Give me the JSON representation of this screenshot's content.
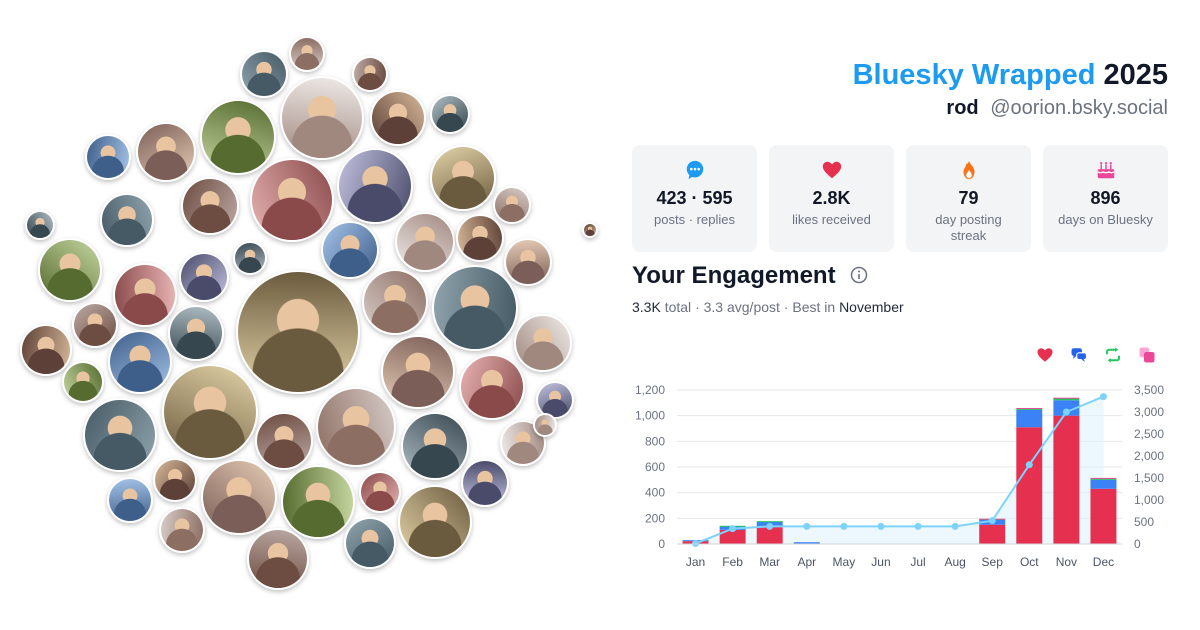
{
  "header": {
    "brand": "Bluesky Wrapped",
    "year": "2025",
    "username": "rod",
    "handle": "@oorion.bsky.social"
  },
  "stats": [
    {
      "icon": "chat-bubble-icon",
      "color": "#1d9bf0",
      "value": "423 · 595",
      "label": "posts · replies"
    },
    {
      "icon": "heart-icon",
      "color": "#e5304f",
      "value": "2.8K",
      "label": "likes received"
    },
    {
      "icon": "fire-icon",
      "color": "#f97316",
      "value": "79",
      "label": "day posting streak"
    },
    {
      "icon": "cake-icon",
      "color": "#ec4899",
      "value": "896",
      "label": "days on Bluesky"
    }
  ],
  "engagement": {
    "title": "Your Engagement",
    "total": "3.3K",
    "total_label": "total",
    "avg": "3.3 avg/post",
    "best_prefix": "Best in",
    "best_month": "November"
  },
  "legend": [
    {
      "name": "likes",
      "icon": "heart-icon",
      "color": "#e5304f"
    },
    {
      "name": "replies",
      "icon": "reply-bubbles-icon",
      "color": "#2563eb"
    },
    {
      "name": "reposts",
      "icon": "repost-icon",
      "color": "#22c55e"
    },
    {
      "name": "quotes",
      "icon": "quote-icon",
      "color": "#ec4899"
    }
  ],
  "chart_data": {
    "type": "bar",
    "categories": [
      "Jan",
      "Feb",
      "Mar",
      "Apr",
      "May",
      "Jun",
      "Jul",
      "Aug",
      "Sep",
      "Oct",
      "Nov",
      "Dec"
    ],
    "series": [
      {
        "name": "likes",
        "color": "#e5304f",
        "values": [
          22,
          110,
          140,
          4,
          0,
          0,
          0,
          0,
          150,
          910,
          1000,
          430
        ]
      },
      {
        "name": "replies",
        "color": "#3b82f6",
        "values": [
          8,
          30,
          35,
          10,
          0,
          0,
          0,
          0,
          40,
          135,
          120,
          70
        ]
      },
      {
        "name": "reposts",
        "color": "#22c55e",
        "values": [
          0,
          2,
          3,
          0,
          0,
          0,
          0,
          0,
          5,
          10,
          15,
          10
        ]
      },
      {
        "name": "quotes",
        "color": "#ec4899",
        "values": [
          0,
          0,
          0,
          0,
          0,
          0,
          0,
          0,
          2,
          5,
          5,
          5
        ]
      }
    ],
    "cumulative": {
      "color": "#7dd3fc",
      "values": [
        10,
        350,
        400,
        400,
        400,
        400,
        400,
        400,
        530,
        1800,
        3000,
        3350
      ]
    },
    "ylim_left": [
      0,
      1200
    ],
    "yticks_left": [
      "0",
      "200",
      "400",
      "600",
      "800",
      "1,000",
      "1,200"
    ],
    "ylim_right": [
      0,
      3500
    ],
    "yticks_right": [
      "0",
      "500",
      "1,000",
      "1,500",
      "2,000",
      "2,500",
      "3,000",
      "3,500"
    ],
    "grid": true,
    "legend_position": "top-right"
  },
  "avatar_count": 62
}
